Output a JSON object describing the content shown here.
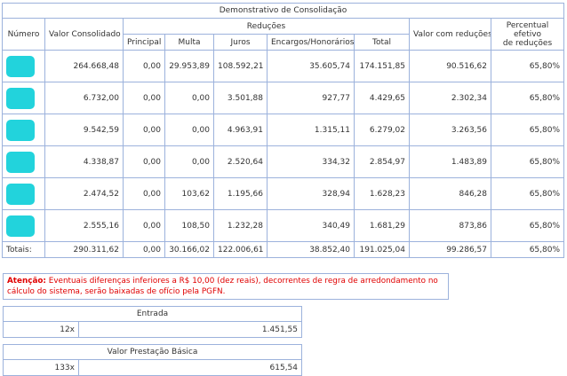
{
  "consolidation": {
    "title": "Demonstrativo de Consolidação",
    "headers": {
      "numero": "Número",
      "valor_consolidado": "Valor Consolidado",
      "reducoes": "Reduções",
      "valor_com_reducoes": "Valor com reduções",
      "percentual": "Percentual\nefetivo\nde reduções"
    },
    "subheaders": [
      "Principal",
      "Multa",
      "Juros",
      "Encargos/Honorários",
      "Total"
    ],
    "rows": [
      [
        "264.668,48",
        "0,00",
        "29.953,89",
        "108.592,21",
        "35.605,74",
        "174.151,85",
        "90.516,62",
        "65,80%"
      ],
      [
        "6.732,00",
        "0,00",
        "0,00",
        "3.501,88",
        "927,77",
        "4.429,65",
        "2.302,34",
        "65,80%"
      ],
      [
        "9.542,59",
        "0,00",
        "0,00",
        "4.963,91",
        "1.315,11",
        "6.279,02",
        "3.263,56",
        "65,80%"
      ],
      [
        "4.338,87",
        "0,00",
        "0,00",
        "2.520,64",
        "334,32",
        "2.854,97",
        "1.483,89",
        "65,80%"
      ],
      [
        "2.474,52",
        "0,00",
        "103,62",
        "1.195,66",
        "328,94",
        "1.628,23",
        "846,28",
        "65,80%"
      ],
      [
        "2.555,16",
        "0,00",
        "108,50",
        "1.232,28",
        "340,49",
        "1.681,29",
        "873,86",
        "65,80%"
      ]
    ],
    "totals_label": "Totais:",
    "totals": [
      "290.311,62",
      "0,00",
      "30.166,02",
      "122.006,61",
      "38.852,40",
      "191.025,04",
      "99.286,57",
      "65,80%"
    ]
  },
  "notice": {
    "label": "Atenção:",
    "text": "Eventuais diferenças inferiores a R$ 10,00 (dez reais), decorrentes de regra de arredondamento no cálculo do sistema, serão baixadas de ofício pela PGFN."
  },
  "entrada": {
    "title": "Entrada",
    "installments": "12x",
    "value": "1.451,55"
  },
  "prestacao": {
    "title": "Valor Prestação Básica",
    "installments": "133x",
    "value": "615,54"
  }
}
